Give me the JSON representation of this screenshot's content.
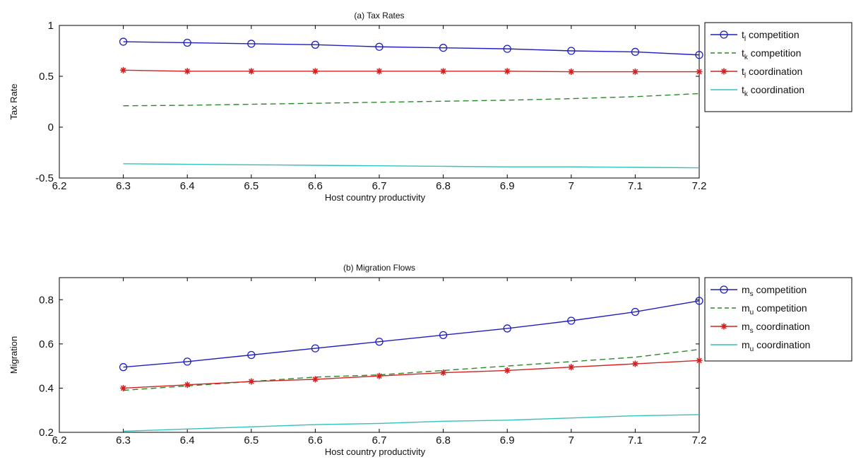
{
  "chart_data": [
    {
      "type": "line",
      "title": "(a) Tax Rates",
      "xlabel": "Host country productivity",
      "ylabel": "Tax Rate",
      "xlim": [
        6.2,
        7.2
      ],
      "ylim": [
        -0.5,
        1
      ],
      "xticks": [
        "6.2",
        "6.3",
        "6.4",
        "6.5",
        "6.6",
        "6.7",
        "6.8",
        "6.9",
        "7",
        "7.1",
        "7.2"
      ],
      "yticks": [
        "-0.5",
        "0",
        "0.5",
        "1"
      ],
      "grid": false,
      "legend_position": "outside-right",
      "x": [
        6.3,
        6.4,
        6.5,
        6.6,
        6.7,
        6.8,
        6.9,
        7.0,
        7.1,
        7.2
      ],
      "series": [
        {
          "legend_main": "t",
          "legend_sub": "l",
          "legend_rest": " competition",
          "color": "#1f1fbf",
          "style": "solid",
          "marker": "circle",
          "values": [
            0.84,
            0.83,
            0.82,
            0.81,
            0.79,
            0.78,
            0.77,
            0.75,
            0.74,
            0.71
          ]
        },
        {
          "legend_main": "t",
          "legend_sub": "k",
          "legend_rest": " competition",
          "color": "#2a8a2a",
          "style": "dashed",
          "marker": "none",
          "values": [
            0.21,
            0.215,
            0.225,
            0.235,
            0.245,
            0.255,
            0.265,
            0.28,
            0.3,
            0.33
          ]
        },
        {
          "legend_main": "t",
          "legend_sub": "l",
          "legend_rest": " coordination",
          "color": "#d42020",
          "style": "solid",
          "marker": "star",
          "values": [
            0.56,
            0.55,
            0.55,
            0.55,
            0.55,
            0.55,
            0.55,
            0.545,
            0.545,
            0.545
          ]
        },
        {
          "legend_main": "t",
          "legend_sub": "k",
          "legend_rest": " coordination",
          "color": "#33c0c0",
          "style": "solid",
          "marker": "none",
          "values": [
            -0.36,
            -0.365,
            -0.37,
            -0.375,
            -0.38,
            -0.385,
            -0.39,
            -0.39,
            -0.395,
            -0.4
          ]
        }
      ]
    },
    {
      "type": "line",
      "title": "(b) Migration Flows",
      "xlabel": "Host country productivity",
      "ylabel": "Migration",
      "xlim": [
        6.2,
        7.2
      ],
      "ylim": [
        0.2,
        0.9
      ],
      "xticks": [
        "6.2",
        "6.3",
        "6.4",
        "6.5",
        "6.6",
        "6.7",
        "6.8",
        "6.9",
        "7",
        "7.1",
        "7.2"
      ],
      "yticks": [
        "0.2",
        "0.4",
        "0.6",
        "0.8"
      ],
      "grid": false,
      "legend_position": "outside-right",
      "x": [
        6.3,
        6.4,
        6.5,
        6.6,
        6.7,
        6.8,
        6.9,
        7.0,
        7.1,
        7.2
      ],
      "series": [
        {
          "legend_main": "m",
          "legend_sub": "s",
          "legend_rest": " competition",
          "color": "#1f1fbf",
          "style": "solid",
          "marker": "circle",
          "values": [
            0.495,
            0.52,
            0.55,
            0.58,
            0.61,
            0.64,
            0.67,
            0.705,
            0.745,
            0.795
          ]
        },
        {
          "legend_main": "m",
          "legend_sub": "u",
          "legend_rest": " competition",
          "color": "#2a8a2a",
          "style": "dashed",
          "marker": "none",
          "values": [
            0.39,
            0.41,
            0.43,
            0.45,
            0.46,
            0.48,
            0.5,
            0.52,
            0.54,
            0.575
          ]
        },
        {
          "legend_main": "m",
          "legend_sub": "s",
          "legend_rest": " coordination",
          "color": "#d42020",
          "style": "solid",
          "marker": "star",
          "values": [
            0.4,
            0.415,
            0.43,
            0.44,
            0.455,
            0.47,
            0.48,
            0.495,
            0.51,
            0.525
          ]
        },
        {
          "legend_main": "m",
          "legend_sub": "u",
          "legend_rest": " coordination",
          "color": "#33c0c0",
          "style": "solid",
          "marker": "none",
          "values": [
            0.205,
            0.215,
            0.225,
            0.235,
            0.24,
            0.25,
            0.255,
            0.265,
            0.275,
            0.28
          ]
        }
      ]
    }
  ]
}
